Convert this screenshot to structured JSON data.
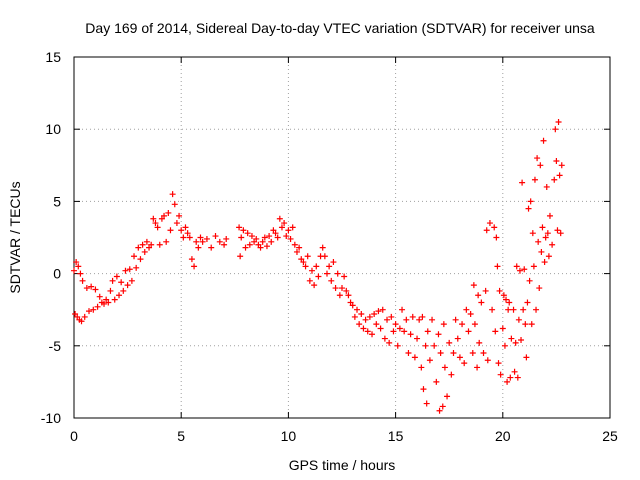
{
  "chart_data": {
    "type": "scatter",
    "title": "Day 169 of 2014, Sidereal Day-to-day VTEC variation (SDTVAR) for receiver unsa",
    "xlabel": "GPS time / hours",
    "ylabel": "SDTVAR / TECUs",
    "xlim": [
      0,
      25
    ],
    "ylim": [
      -10,
      15
    ],
    "xticks": [
      0,
      5,
      10,
      15,
      20,
      25
    ],
    "yticks": [
      -10,
      -5,
      0,
      5,
      10,
      15
    ],
    "grid": true,
    "marker": "+",
    "color": "#ff0000",
    "series": [
      {
        "name": "SDTVAR",
        "points": [
          [
            0.0,
            0.2
          ],
          [
            0.05,
            -2.8
          ],
          [
            0.1,
            0.8
          ],
          [
            0.15,
            -3.0
          ],
          [
            0.2,
            0.5
          ],
          [
            0.25,
            -3.2
          ],
          [
            0.3,
            0.0
          ],
          [
            0.35,
            -3.3
          ],
          [
            0.4,
            -0.5
          ],
          [
            0.5,
            -3.0
          ],
          [
            0.6,
            -1.0
          ],
          [
            0.7,
            -2.6
          ],
          [
            0.8,
            -0.9
          ],
          [
            0.9,
            -2.5
          ],
          [
            1.0,
            -1.1
          ],
          [
            1.1,
            -2.3
          ],
          [
            1.2,
            -1.6
          ],
          [
            1.3,
            -2.0
          ],
          [
            1.4,
            -2.1
          ],
          [
            1.5,
            -1.8
          ],
          [
            1.6,
            -2.0
          ],
          [
            1.7,
            -1.2
          ],
          [
            1.8,
            -0.5
          ],
          [
            1.9,
            -1.8
          ],
          [
            2.0,
            -0.2
          ],
          [
            2.1,
            -1.5
          ],
          [
            2.2,
            -0.6
          ],
          [
            2.3,
            -1.2
          ],
          [
            2.4,
            0.2
          ],
          [
            2.5,
            -0.8
          ],
          [
            2.6,
            0.3
          ],
          [
            2.7,
            -0.5
          ],
          [
            2.8,
            1.2
          ],
          [
            2.9,
            0.4
          ],
          [
            3.0,
            1.8
          ],
          [
            3.1,
            1.0
          ],
          [
            3.2,
            2.0
          ],
          [
            3.3,
            1.5
          ],
          [
            3.4,
            2.2
          ],
          [
            3.5,
            1.8
          ],
          [
            3.6,
            2.0
          ],
          [
            3.7,
            3.8
          ],
          [
            3.8,
            3.5
          ],
          [
            3.9,
            3.2
          ],
          [
            4.0,
            2.0
          ],
          [
            4.1,
            3.8
          ],
          [
            4.2,
            4.0
          ],
          [
            4.3,
            2.2
          ],
          [
            4.4,
            4.2
          ],
          [
            4.5,
            3.0
          ],
          [
            4.6,
            5.5
          ],
          [
            4.7,
            4.8
          ],
          [
            4.8,
            3.5
          ],
          [
            4.9,
            4.0
          ],
          [
            5.0,
            3.0
          ],
          [
            5.1,
            2.5
          ],
          [
            5.2,
            3.2
          ],
          [
            5.3,
            2.8
          ],
          [
            5.4,
            2.5
          ],
          [
            5.5,
            1.0
          ],
          [
            5.6,
            0.5
          ],
          [
            5.7,
            2.2
          ],
          [
            5.8,
            1.8
          ],
          [
            5.9,
            2.5
          ],
          [
            6.0,
            2.2
          ],
          [
            6.2,
            2.4
          ],
          [
            6.4,
            1.8
          ],
          [
            6.6,
            2.6
          ],
          [
            6.8,
            2.2
          ],
          [
            7.0,
            2.0
          ],
          [
            7.1,
            2.4
          ],
          [
            7.7,
            3.2
          ],
          [
            7.75,
            1.2
          ],
          [
            7.8,
            2.5
          ],
          [
            7.9,
            3.0
          ],
          [
            8.0,
            1.8
          ],
          [
            8.1,
            2.8
          ],
          [
            8.2,
            2.0
          ],
          [
            8.3,
            2.6
          ],
          [
            8.4,
            2.2
          ],
          [
            8.5,
            2.4
          ],
          [
            8.6,
            2.0
          ],
          [
            8.7,
            1.8
          ],
          [
            8.8,
            2.2
          ],
          [
            8.9,
            2.5
          ],
          [
            9.0,
            1.9
          ],
          [
            9.1,
            2.6
          ],
          [
            9.2,
            2.2
          ],
          [
            9.3,
            3.0
          ],
          [
            9.4,
            2.8
          ],
          [
            9.5,
            2.5
          ],
          [
            9.6,
            3.8
          ],
          [
            9.7,
            3.2
          ],
          [
            9.8,
            3.5
          ],
          [
            9.9,
            2.6
          ],
          [
            10.0,
            3.0
          ],
          [
            10.1,
            2.4
          ],
          [
            10.2,
            3.2
          ],
          [
            10.3,
            2.0
          ],
          [
            10.4,
            1.5
          ],
          [
            10.5,
            1.8
          ],
          [
            10.6,
            1.0
          ],
          [
            10.7,
            0.8
          ],
          [
            10.8,
            0.5
          ],
          [
            10.9,
            1.2
          ],
          [
            11.0,
            -0.5
          ],
          [
            11.1,
            0.2
          ],
          [
            11.2,
            -0.8
          ],
          [
            11.3,
            0.5
          ],
          [
            11.4,
            -0.2
          ],
          [
            11.5,
            1.2
          ],
          [
            11.6,
            1.8
          ],
          [
            11.7,
            1.2
          ],
          [
            11.8,
            0.0
          ],
          [
            11.9,
            0.5
          ],
          [
            12.0,
            -0.5
          ],
          [
            12.1,
            0.8
          ],
          [
            12.2,
            -1.0
          ],
          [
            12.3,
            0.0
          ],
          [
            12.4,
            -1.5
          ],
          [
            12.5,
            -1.0
          ],
          [
            12.6,
            -0.2
          ],
          [
            12.7,
            -1.2
          ],
          [
            12.8,
            -1.5
          ],
          [
            12.9,
            -2.0
          ],
          [
            13.0,
            -2.2
          ],
          [
            13.1,
            -3.0
          ],
          [
            13.2,
            -2.5
          ],
          [
            13.3,
            -3.5
          ],
          [
            13.4,
            -2.8
          ],
          [
            13.5,
            -3.8
          ],
          [
            13.6,
            -3.2
          ],
          [
            13.7,
            -4.0
          ],
          [
            13.8,
            -3.0
          ],
          [
            13.9,
            -4.2
          ],
          [
            14.0,
            -2.8
          ],
          [
            14.1,
            -3.5
          ],
          [
            14.2,
            -2.6
          ],
          [
            14.3,
            -3.8
          ],
          [
            14.4,
            -2.5
          ],
          [
            14.5,
            -4.5
          ],
          [
            14.6,
            -3.2
          ],
          [
            14.7,
            -4.8
          ],
          [
            14.8,
            -3.0
          ],
          [
            14.9,
            -4.0
          ],
          [
            15.0,
            -3.5
          ],
          [
            15.1,
            -5.0
          ],
          [
            15.2,
            -3.8
          ],
          [
            15.3,
            -2.5
          ],
          [
            15.4,
            -4.0
          ],
          [
            15.5,
            -3.2
          ],
          [
            15.6,
            -5.5
          ],
          [
            15.7,
            -4.2
          ],
          [
            15.8,
            -3.0
          ],
          [
            15.9,
            -5.8
          ],
          [
            16.0,
            -4.5
          ],
          [
            16.1,
            -3.2
          ],
          [
            16.2,
            -6.5
          ],
          [
            16.25,
            -3.0
          ],
          [
            16.3,
            -8.0
          ],
          [
            16.4,
            -5.0
          ],
          [
            16.45,
            -9.0
          ],
          [
            16.5,
            -4.0
          ],
          [
            16.6,
            -6.0
          ],
          [
            16.7,
            -3.2
          ],
          [
            16.8,
            -5.0
          ],
          [
            16.9,
            -7.5
          ],
          [
            17.0,
            -4.2
          ],
          [
            17.05,
            -9.5
          ],
          [
            17.1,
            -5.5
          ],
          [
            17.2,
            -9.2
          ],
          [
            17.25,
            -3.5
          ],
          [
            17.3,
            -6.5
          ],
          [
            17.4,
            -8.5
          ],
          [
            17.5,
            -4.8
          ],
          [
            17.6,
            -7.0
          ],
          [
            17.7,
            -5.5
          ],
          [
            17.8,
            -3.2
          ],
          [
            17.9,
            -4.5
          ],
          [
            18.0,
            -5.8
          ],
          [
            18.1,
            -3.5
          ],
          [
            18.2,
            -6.2
          ],
          [
            18.3,
            -2.5
          ],
          [
            18.4,
            -4.0
          ],
          [
            18.5,
            -2.8
          ],
          [
            18.6,
            -5.5
          ],
          [
            18.65,
            -0.8
          ],
          [
            18.7,
            -3.5
          ],
          [
            18.8,
            -6.5
          ],
          [
            18.85,
            -1.5
          ],
          [
            18.9,
            -4.8
          ],
          [
            19.0,
            -2.0
          ],
          [
            19.1,
            -5.5
          ],
          [
            19.2,
            -1.2
          ],
          [
            19.25,
            3.0
          ],
          [
            19.3,
            -6.0
          ],
          [
            19.4,
            3.5
          ],
          [
            19.5,
            -2.5
          ],
          [
            19.6,
            3.2
          ],
          [
            19.65,
            -4.0
          ],
          [
            19.7,
            2.5
          ],
          [
            19.75,
            0.5
          ],
          [
            19.8,
            -6.2
          ],
          [
            19.85,
            -1.2
          ],
          [
            19.9,
            -7.0
          ],
          [
            20.0,
            -3.8
          ],
          [
            20.05,
            -1.5
          ],
          [
            20.1,
            -5.0
          ],
          [
            20.15,
            -1.8
          ],
          [
            20.2,
            -7.5
          ],
          [
            20.25,
            -2.5
          ],
          [
            20.3,
            -2.0
          ],
          [
            20.35,
            -7.2
          ],
          [
            20.4,
            -4.5
          ],
          [
            20.5,
            -2.5
          ],
          [
            20.55,
            -6.8
          ],
          [
            20.6,
            -4.8
          ],
          [
            20.65,
            0.5
          ],
          [
            20.7,
            -7.2
          ],
          [
            20.75,
            -3.2
          ],
          [
            20.8,
            0.2
          ],
          [
            20.85,
            -4.6
          ],
          [
            20.9,
            6.3
          ],
          [
            20.95,
            -2.5
          ],
          [
            21.0,
            0.3
          ],
          [
            21.05,
            -3.5
          ],
          [
            21.1,
            -5.8
          ],
          [
            21.15,
            -2.0
          ],
          [
            21.2,
            4.5
          ],
          [
            21.25,
            -0.5
          ],
          [
            21.3,
            5.0
          ],
          [
            21.35,
            -3.5
          ],
          [
            21.4,
            2.8
          ],
          [
            21.45,
            0.5
          ],
          [
            21.5,
            6.5
          ],
          [
            21.55,
            -2.5
          ],
          [
            21.6,
            8.0
          ],
          [
            21.65,
            2.2
          ],
          [
            21.7,
            -1.0
          ],
          [
            21.75,
            7.5
          ],
          [
            21.8,
            1.5
          ],
          [
            21.85,
            3.2
          ],
          [
            21.9,
            9.2
          ],
          [
            21.95,
            0.8
          ],
          [
            22.0,
            2.5
          ],
          [
            22.05,
            6.0
          ],
          [
            22.1,
            2.8
          ],
          [
            22.15,
            1.2
          ],
          [
            22.2,
            4.0
          ],
          [
            22.3,
            2.0
          ],
          [
            22.4,
            6.5
          ],
          [
            22.45,
            10.0
          ],
          [
            22.5,
            7.8
          ],
          [
            22.55,
            3.0
          ],
          [
            22.6,
            10.5
          ],
          [
            22.65,
            6.8
          ],
          [
            22.7,
            2.8
          ],
          [
            22.75,
            7.5
          ]
        ]
      }
    ]
  }
}
